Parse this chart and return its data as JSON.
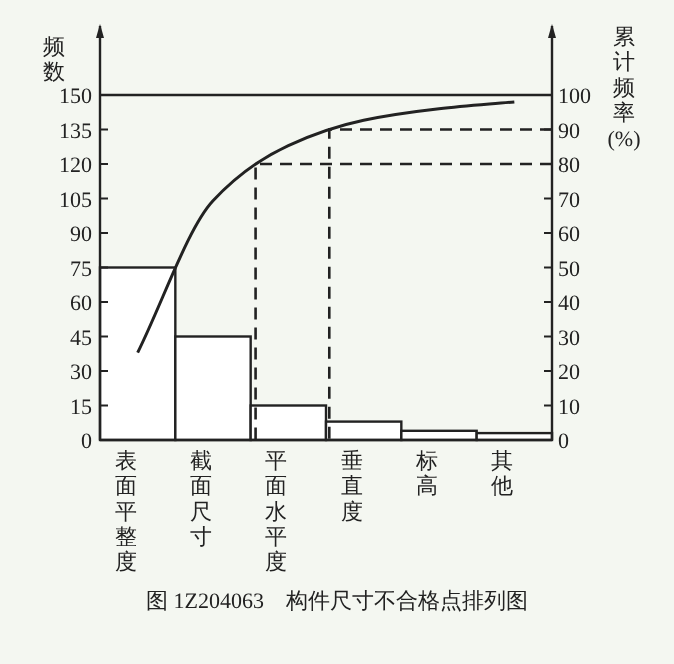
{
  "chart_data": {
    "type": "bar",
    "title": "图 1Z204063　构件尺寸不合格点排列图",
    "ylabel": "频数",
    "y2label": "累计频率(%)",
    "categories": [
      "表面平整度",
      "截面尺寸",
      "平面水平度",
      "垂直度",
      "标高",
      "其他"
    ],
    "ylim": [
      0,
      180
    ],
    "yticks": [
      0,
      15,
      30,
      45,
      60,
      75,
      90,
      105,
      120,
      135,
      150
    ],
    "y2lim": [
      0,
      120
    ],
    "y2ticks": [
      0,
      10,
      20,
      30,
      40,
      50,
      60,
      70,
      80,
      90,
      100
    ],
    "series": [
      {
        "color": "#ffffff",
        "values": [
          75,
          45,
          15,
          8,
          4,
          3
        ]
      },
      {
        "type": "line",
        "color": "#222222",
        "values": [
          38,
          104,
          128,
          139,
          144,
          147
        ]
      }
    ],
    "ref_lines": [
      {
        "axis": "y",
        "value": 150,
        "line_style": "solid",
        "color": "#222222"
      },
      {
        "axis": "y2",
        "value": 80,
        "line_style": "dashed",
        "color": "#222222"
      },
      {
        "axis": "y2",
        "value": 90,
        "line_style": "dashed",
        "color": "#222222"
      }
    ]
  }
}
